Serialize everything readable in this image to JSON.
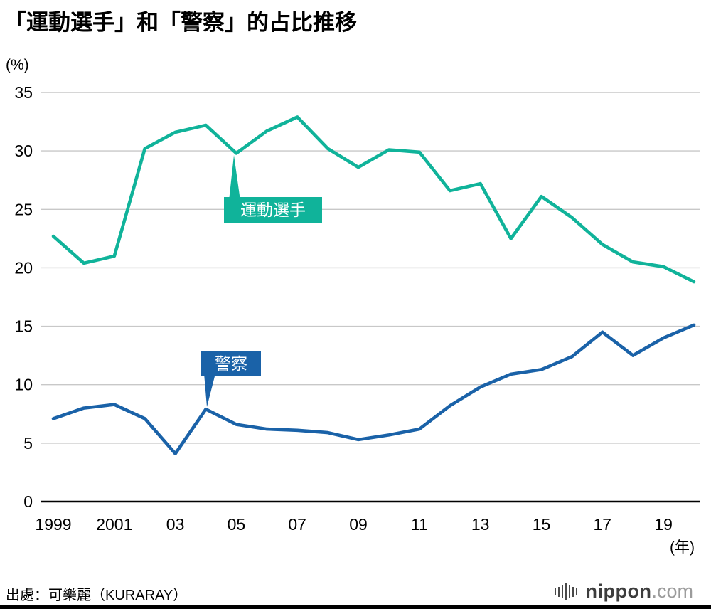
{
  "title": "「運動選手」和「警察」的占比推移",
  "y_axis_unit": "(%)",
  "x_axis_unit": "(年)",
  "source": "出處：可樂麗（KURARAY）",
  "logo": {
    "icon": "waveform-bars-icon",
    "brand": "nippon",
    "tld": ".com"
  },
  "annotations": {
    "athlete": "運動選手",
    "police": "警察"
  },
  "chart_data": {
    "type": "line",
    "title": "「運動選手」和「警察」的占比推移",
    "ylabel": "(%)",
    "xlabel": "(年)",
    "ylim": [
      0,
      35
    ],
    "y_ticks": [
      0,
      5,
      10,
      15,
      20,
      25,
      30,
      35
    ],
    "grid": "horizontal",
    "legend_position": "inline-callouts",
    "x": [
      1999,
      2000,
      2001,
      2002,
      2003,
      2004,
      2005,
      2006,
      2007,
      2008,
      2009,
      2010,
      2011,
      2012,
      2013,
      2014,
      2015,
      2016,
      2017,
      2018,
      2019,
      2020
    ],
    "x_ticks": [
      {
        "index": 0,
        "label": "1999"
      },
      {
        "index": 2,
        "label": "2001"
      },
      {
        "index": 4,
        "label": "03"
      },
      {
        "index": 6,
        "label": "05"
      },
      {
        "index": 8,
        "label": "07"
      },
      {
        "index": 10,
        "label": "09"
      },
      {
        "index": 12,
        "label": "11"
      },
      {
        "index": 14,
        "label": "13"
      },
      {
        "index": 16,
        "label": "15"
      },
      {
        "index": 18,
        "label": "17"
      },
      {
        "index": 20,
        "label": "19"
      }
    ],
    "series": [
      {
        "name": "運動選手",
        "color": "#10b39a",
        "values": [
          22.7,
          20.4,
          21.0,
          30.2,
          31.6,
          32.2,
          29.8,
          31.7,
          32.9,
          30.2,
          28.6,
          30.1,
          29.9,
          26.6,
          27.2,
          22.5,
          26.1,
          24.3,
          22.0,
          20.5,
          20.1,
          18.8
        ]
      },
      {
        "name": "警察",
        "color": "#1a62a8",
        "values": [
          7.1,
          8.0,
          8.3,
          7.1,
          4.1,
          7.9,
          6.6,
          6.2,
          6.1,
          5.9,
          5.3,
          5.7,
          6.2,
          8.2,
          9.8,
          10.9,
          11.3,
          12.4,
          14.5,
          12.5,
          14.0,
          15.1
        ]
      }
    ]
  }
}
